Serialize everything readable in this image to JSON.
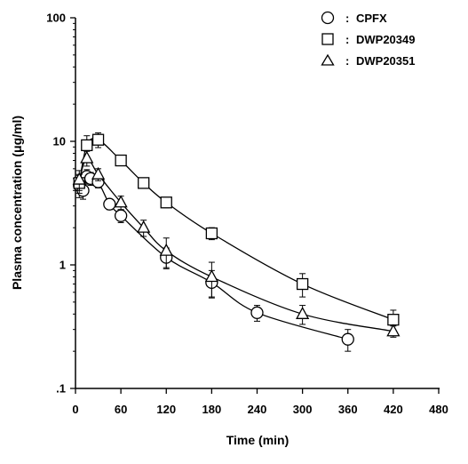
{
  "chart_data": {
    "type": "line",
    "xlabel": "Time (min)",
    "ylabel": "Plasma concentration (μg/ml)",
    "xlim": [
      0,
      480
    ],
    "ylim": [
      0.1,
      100
    ],
    "yscale": "log",
    "grid": false,
    "legend_position": "top-right",
    "x_ticks": [
      0,
      60,
      120,
      180,
      240,
      300,
      360,
      420,
      480
    ],
    "x_tick_labels": [
      "0",
      "60",
      "120",
      "180",
      "240",
      "300",
      "360",
      "420",
      "480"
    ],
    "y_ticks": [
      0.1,
      1,
      10,
      100
    ],
    "y_tick_labels": [
      ".1",
      "1",
      "10",
      "100"
    ],
    "series": [
      {
        "name": "CPFX",
        "marker": "circle",
        "x": [
          5,
          10,
          15,
          20,
          30,
          45,
          60,
          120,
          180,
          240,
          360
        ],
        "y": [
          4.4,
          4.0,
          5.2,
          5.0,
          4.7,
          3.1,
          2.5,
          1.15,
          0.72,
          0.41,
          0.25
        ],
        "err": [
          0.9,
          0.6,
          0.7,
          0.6,
          0.5,
          0.3,
          0.3,
          0.22,
          0.18,
          0.06,
          0.05
        ]
      },
      {
        "name": "DWP20349",
        "marker": "square",
        "x": [
          5,
          15,
          30,
          60,
          90,
          120,
          180,
          300,
          420
        ],
        "y": [
          4.6,
          9.3,
          10.3,
          7.0,
          4.6,
          3.2,
          1.8,
          0.7,
          0.36
        ],
        "err": [
          0.8,
          1.8,
          1.4,
          0.6,
          0.4,
          0.3,
          0.2,
          0.15,
          0.07
        ]
      },
      {
        "name": "DWP20351",
        "marker": "triangle",
        "x": [
          5,
          15,
          30,
          60,
          90,
          120,
          180,
          300,
          420
        ],
        "y": [
          4.9,
          7.3,
          5.4,
          3.2,
          2.0,
          1.3,
          0.8,
          0.4,
          0.29
        ],
        "err": [
          0.9,
          1.0,
          0.6,
          0.4,
          0.3,
          0.35,
          0.25,
          0.07,
          0.03
        ]
      }
    ]
  },
  "legend": {
    "separator": ":",
    "items": [
      "CPFX",
      "DWP20349",
      "DWP20351"
    ]
  }
}
